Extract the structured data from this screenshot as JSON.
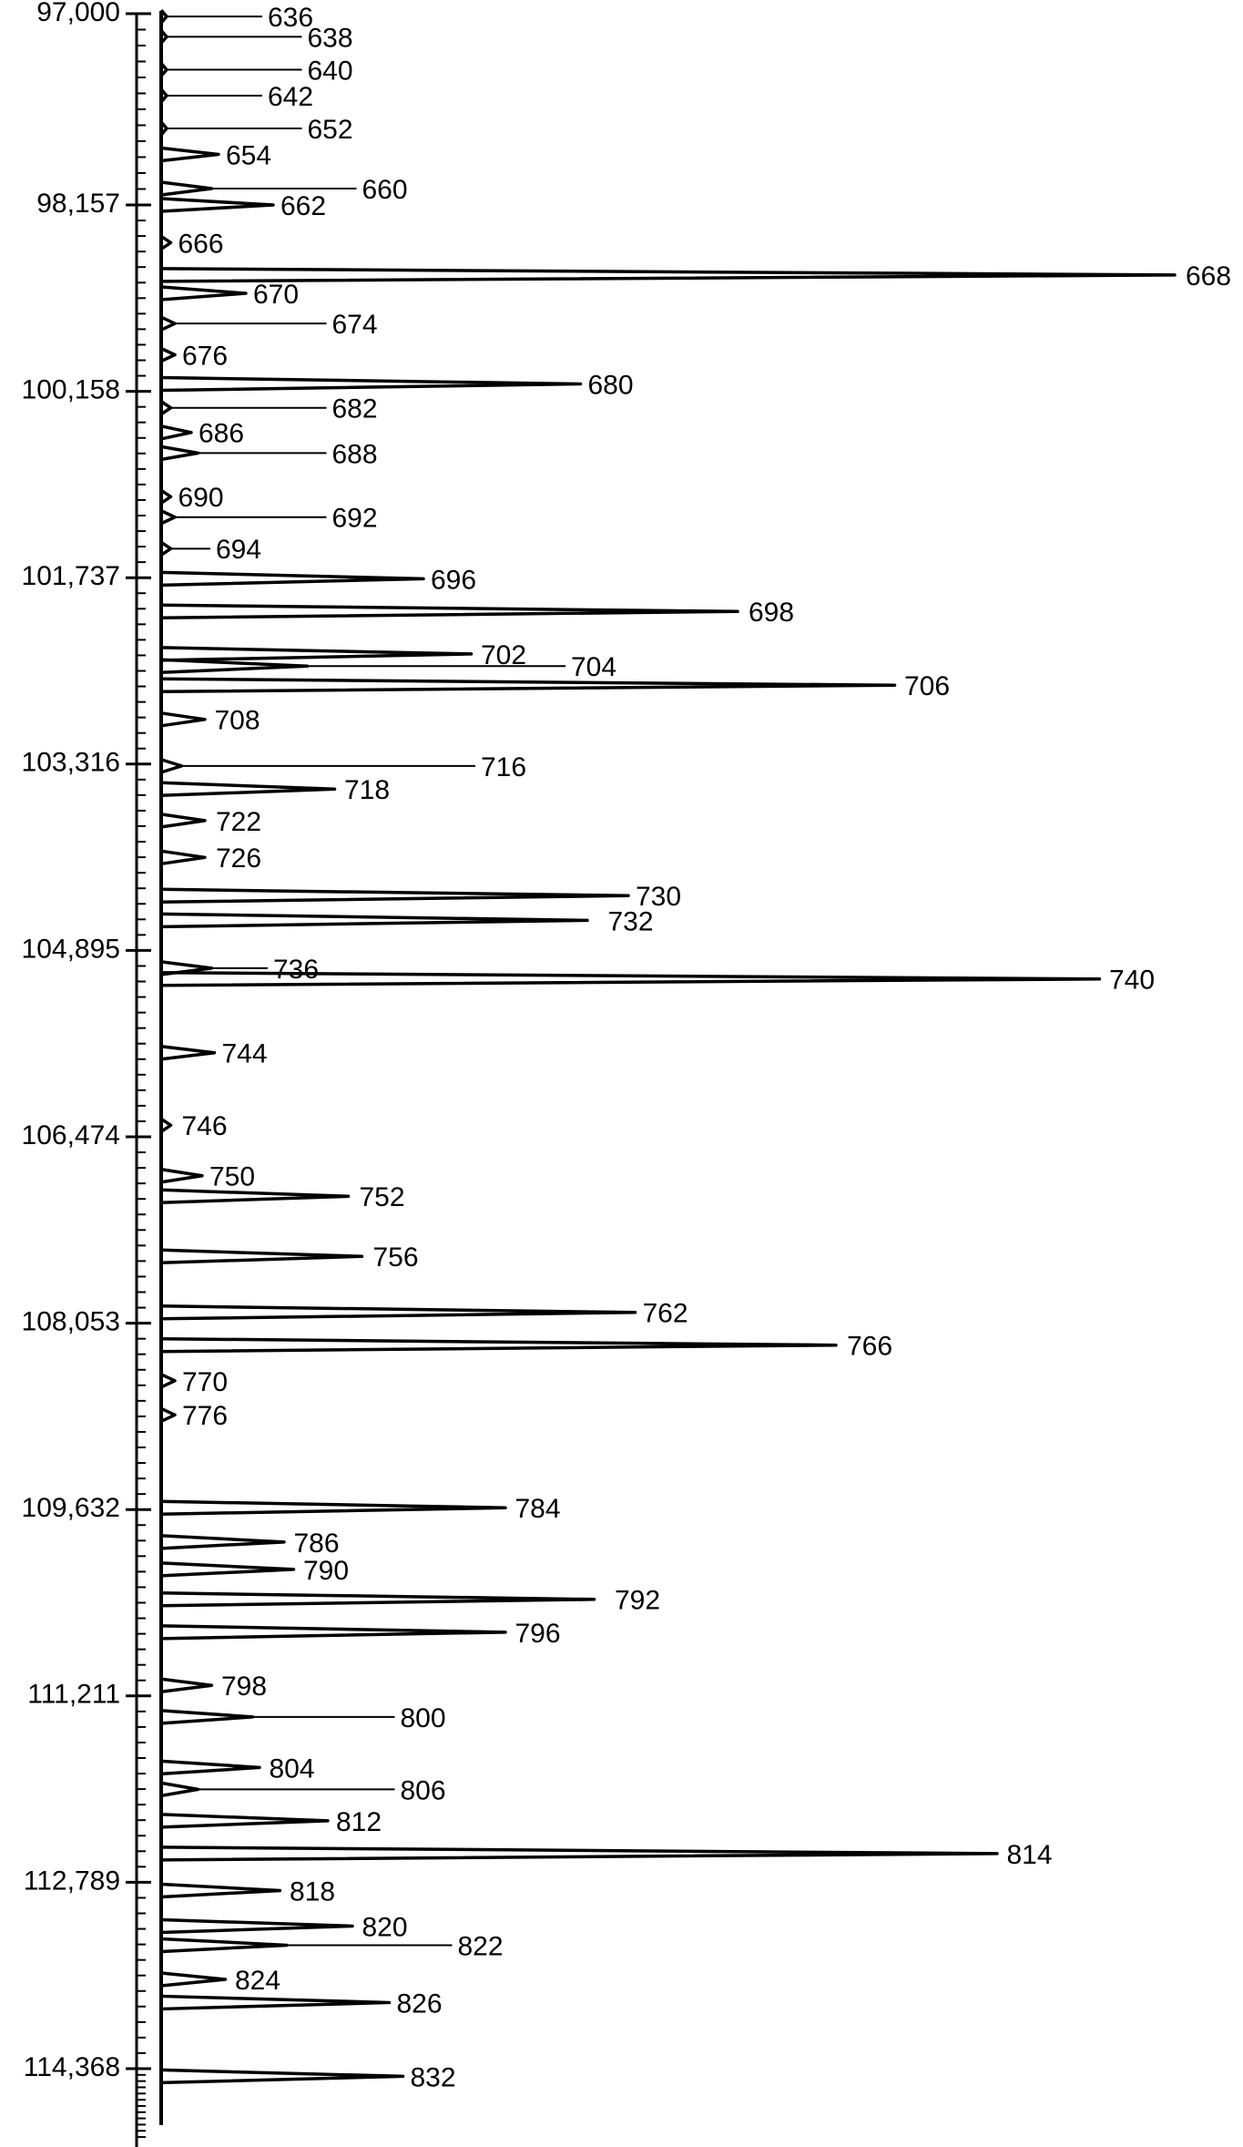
{
  "chart_data": {
    "type": "peak-trace",
    "ylim": [
      97000,
      115000
    ],
    "yticks": [
      {
        "value": 97000,
        "label": "97,000"
      },
      {
        "value": 98157,
        "label": "98,157"
      },
      {
        "value": 100158,
        "label": "100,158"
      },
      {
        "value": 101737,
        "label": "101,737"
      },
      {
        "value": 103316,
        "label": "103,316"
      },
      {
        "value": 104895,
        "label": "104,895"
      },
      {
        "value": 106474,
        "label": "106,474"
      },
      {
        "value": 108053,
        "label": "108,053"
      },
      {
        "value": 109632,
        "label": "109,632"
      },
      {
        "value": 111211,
        "label": "111,211"
      },
      {
        "value": 112789,
        "label": "112,789"
      },
      {
        "value": 114368,
        "label": "114,368"
      }
    ],
    "xlim": [
      0,
      760
    ],
    "color": "#000000",
    "labels": [
      "636",
      "638",
      "640",
      "642",
      "652",
      "654",
      "660",
      "662",
      "666",
      "668",
      "670",
      "674",
      "676",
      "680",
      "682",
      "686",
      "688",
      "690",
      "692",
      "694",
      "696",
      "698",
      "702",
      "704",
      "706",
      "708",
      "716",
      "718",
      "722",
      "726",
      "730",
      "732",
      "736",
      "740",
      "744",
      "746",
      "750",
      "752",
      "756",
      "762",
      "766",
      "770",
      "776",
      "784",
      "786",
      "790",
      "792",
      "796",
      "798",
      "800",
      "804",
      "806",
      "812",
      "814",
      "818",
      "820",
      "822",
      "824",
      "826",
      "832"
    ],
    "positions": [
      97017,
      97140,
      97339,
      97496,
      97694,
      97851,
      98058,
      98157,
      98562,
      98909,
      99106,
      99430,
      99766,
      100079,
      100298,
      100507,
      100681,
      101051,
      101224,
      101491,
      101746,
      102023,
      102383,
      102486,
      102648,
      102938,
      103332,
      103528,
      103795,
      104107,
      104431,
      104640,
      105045,
      105137,
      105762,
      106376,
      106804,
      106978,
      107487,
      107962,
      108239,
      108541,
      108830,
      109617,
      109907,
      110139,
      110393,
      110671,
      111122,
      111389,
      111817,
      112002,
      112268,
      112546,
      112859,
      113160,
      113322,
      113612,
      113808,
      114433
    ],
    "intensities": [
      4,
      4,
      4,
      4,
      4,
      42,
      37,
      82,
      7,
      742,
      62,
      10,
      10,
      307,
      7,
      22,
      27,
      7,
      10,
      7,
      192,
      422,
      227,
      107,
      537,
      32,
      15,
      127,
      32,
      32,
      342,
      312,
      37,
      687,
      39,
      7,
      30,
      137,
      147,
      347,
      494,
      10,
      10,
      252,
      90,
      97,
      317,
      252,
      37,
      67,
      72,
      27,
      122,
      612,
      87,
      140,
      92,
      47,
      167,
      177
    ]
  }
}
